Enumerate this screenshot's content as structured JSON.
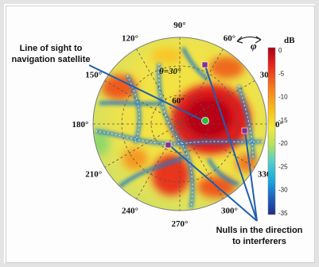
{
  "figure": {
    "annotation_los": [
      "Line of sight to",
      "navigation satellite"
    ],
    "annotation_nulls": [
      "Nulls in the direction",
      "to interferers"
    ],
    "theta_label": "θ=30°",
    "ring_label": "60°",
    "phi_label": "φ",
    "angle_labels": [
      "90°",
      "60°",
      "30°",
      "0°",
      "330°",
      "300°",
      "270°",
      "240°",
      "210°",
      "180°",
      "150°",
      "120°"
    ],
    "colorbar": {
      "title": "dB",
      "ticks": [
        "0",
        "-5",
        "-10",
        "-15",
        "-20",
        "-25",
        "-30",
        "-35"
      ],
      "colors": [
        "#a80014",
        "#e8231c",
        "#f58220",
        "#f6c21c",
        "#f2ea3c",
        "#b6e15c",
        "#55d0c8",
        "#1aa6df",
        "#1f5fbf",
        "#1d2e8a"
      ]
    },
    "colors": {
      "satellite_marker": "#2fbf3f",
      "interferer_marker": "#8a2b8f",
      "pointer_line": "#1f5fae"
    }
  }
}
